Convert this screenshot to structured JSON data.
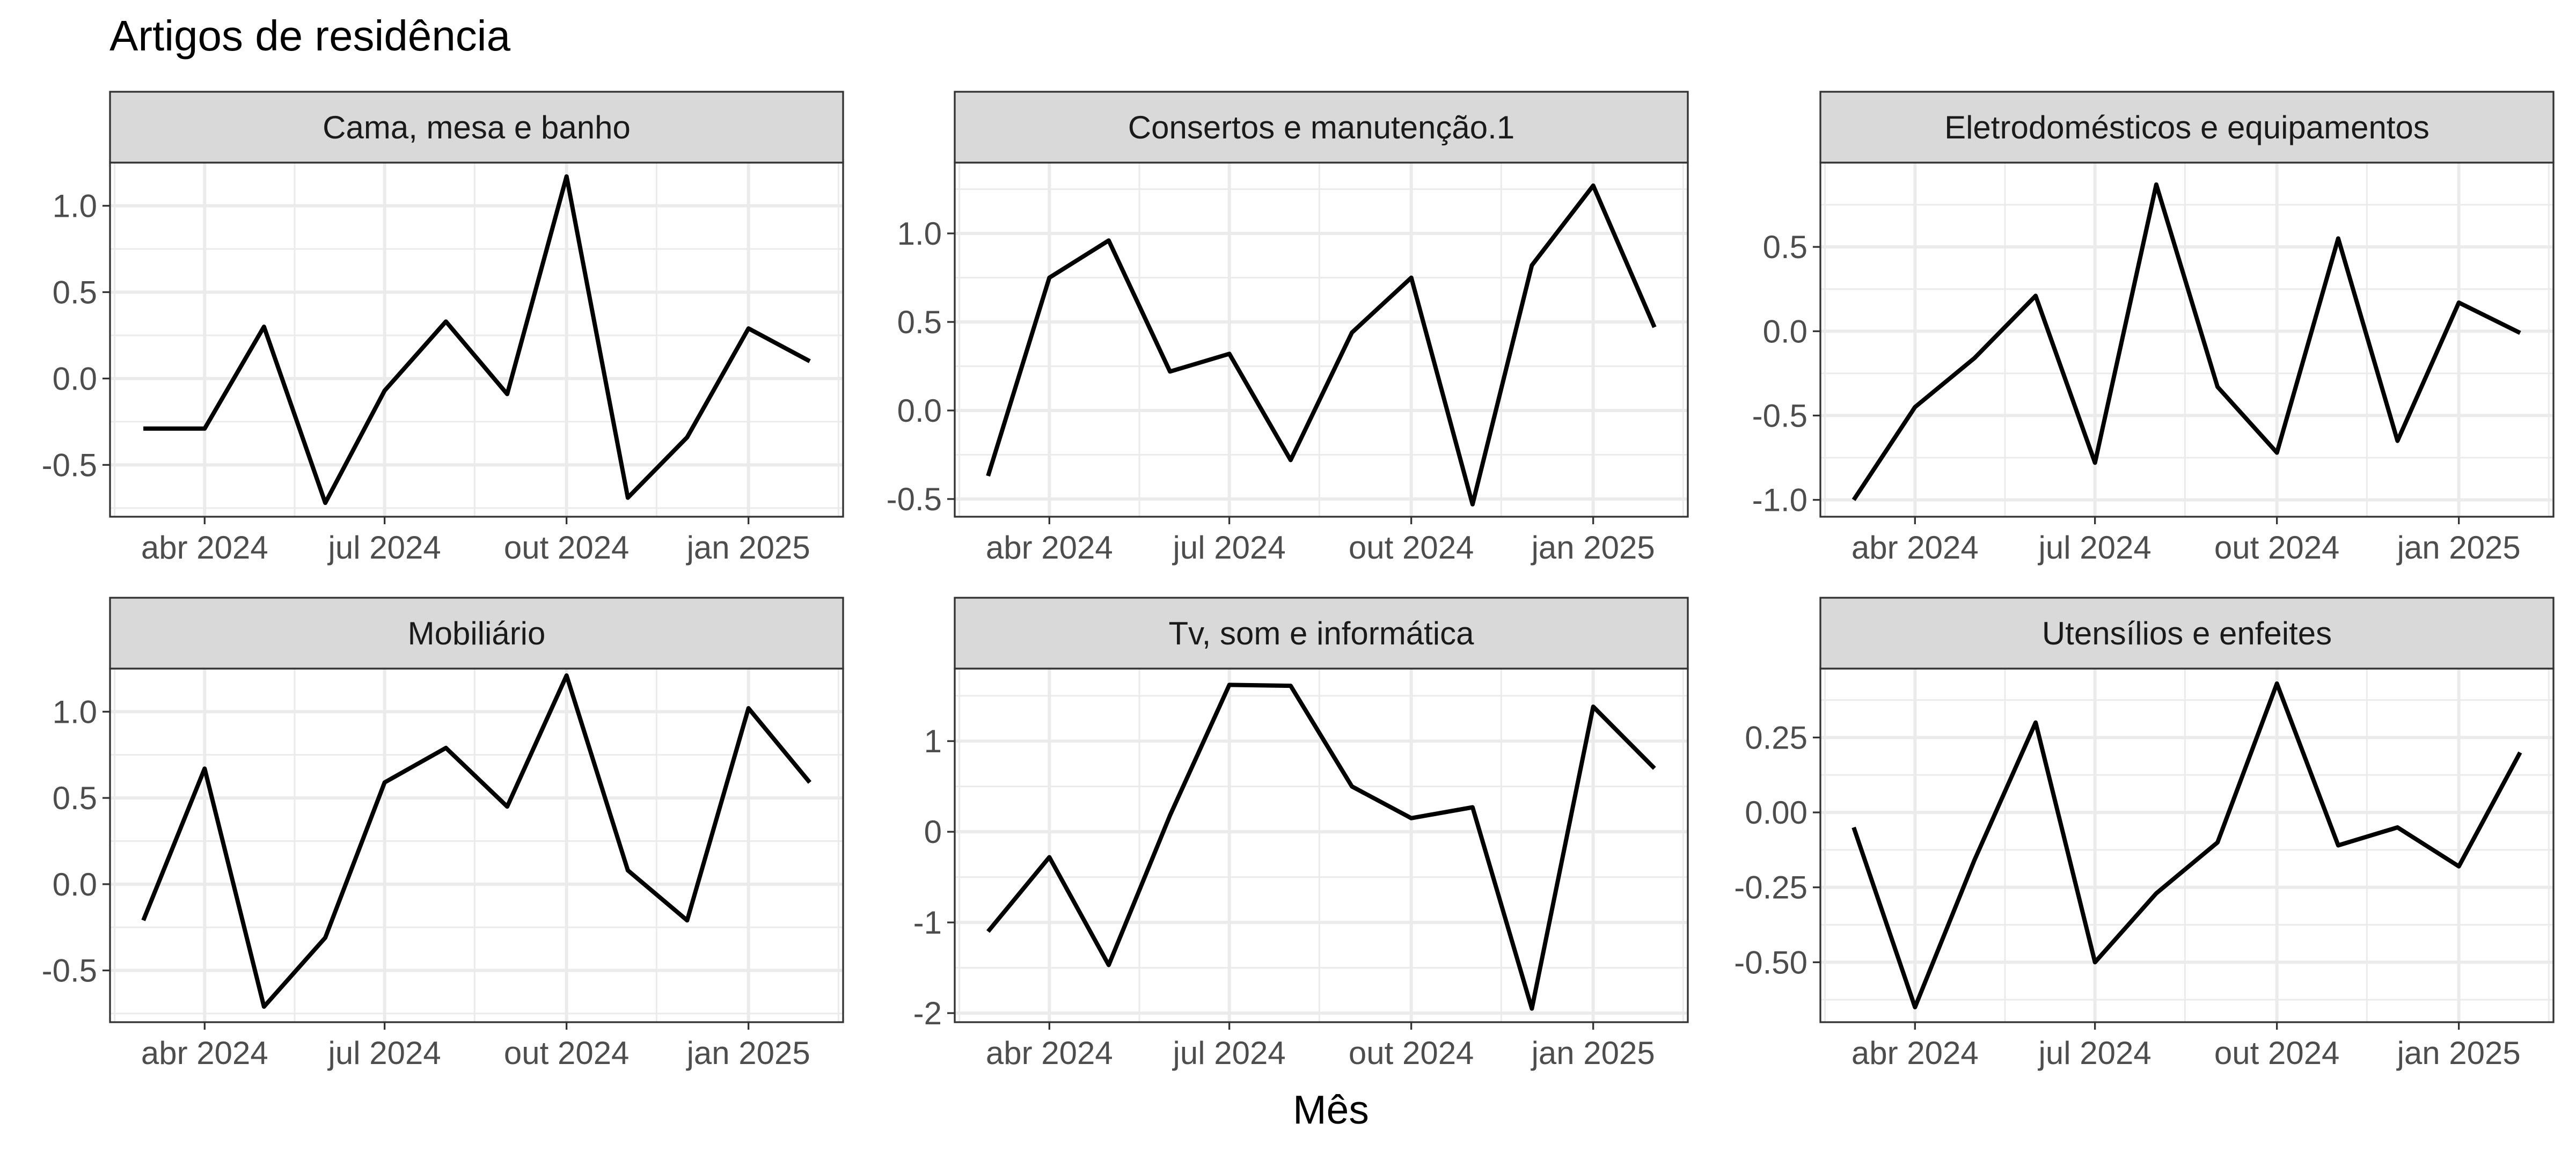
{
  "chart_data": {
    "type": "line",
    "title": "Artigos de residência",
    "xlabel": "Mês",
    "ylabel": "",
    "x_tick_labels": [
      "abr 2024",
      "jul 2024",
      "out 2024",
      "jan 2025"
    ],
    "x_tick_dates": [
      "2024-04-01",
      "2024-07-01",
      "2024-10-01",
      "2025-01-01"
    ],
    "x": [
      "2024-03-01",
      "2024-04-01",
      "2024-05-01",
      "2024-06-01",
      "2024-07-01",
      "2024-08-01",
      "2024-09-01",
      "2024-10-01",
      "2024-11-01",
      "2024-12-01",
      "2025-01-01",
      "2025-02-01"
    ],
    "grid": true,
    "panels": [
      {
        "name": "Cama, mesa e banho",
        "ylim": [
          -0.8,
          1.25
        ],
        "yticks": [
          -0.5,
          0.0,
          0.5,
          1.0
        ],
        "ytick_labels": [
          "-0.5",
          "0.0",
          "0.5",
          "1.0"
        ],
        "values": [
          -0.29,
          -0.29,
          0.3,
          -0.72,
          -0.07,
          0.33,
          -0.09,
          1.17,
          -0.69,
          -0.34,
          0.29,
          0.1
        ]
      },
      {
        "name": "Consertos e manutenção.1",
        "ylim": [
          -0.6,
          1.4
        ],
        "yticks": [
          -0.5,
          0.0,
          0.5,
          1.0
        ],
        "ytick_labels": [
          "-0.5",
          "0.0",
          "0.5",
          "1.0"
        ],
        "values": [
          -0.37,
          0.75,
          0.96,
          0.22,
          0.32,
          -0.28,
          0.44,
          0.75,
          -0.53,
          0.82,
          1.27,
          0.47
        ]
      },
      {
        "name": "Eletrodomésticos e equipamentos",
        "ylim": [
          -1.1,
          1.0
        ],
        "yticks": [
          -1.0,
          -0.5,
          0.0,
          0.5
        ],
        "ytick_labels": [
          "-1.0",
          "-0.5",
          "0.0",
          "0.5"
        ],
        "values": [
          -1.0,
          -0.45,
          -0.16,
          0.21,
          -0.78,
          0.87,
          -0.33,
          -0.72,
          0.55,
          -0.65,
          0.17,
          -0.01
        ]
      },
      {
        "name": "Mobiliário",
        "ylim": [
          -0.8,
          1.25
        ],
        "yticks": [
          -0.5,
          0.0,
          0.5,
          1.0
        ],
        "ytick_labels": [
          "-0.5",
          "0.0",
          "0.5",
          "1.0"
        ],
        "values": [
          -0.21,
          0.67,
          -0.71,
          -0.31,
          0.59,
          0.79,
          0.45,
          1.21,
          0.08,
          -0.21,
          1.02,
          0.59
        ]
      },
      {
        "name": "Tv, som e informática",
        "ylim": [
          -2.1,
          1.8
        ],
        "yticks": [
          -2,
          -1,
          0,
          1
        ],
        "ytick_labels": [
          "-2",
          "-1",
          "0",
          "1"
        ],
        "values": [
          -1.1,
          -0.28,
          -1.47,
          0.18,
          1.62,
          1.61,
          0.5,
          0.15,
          0.27,
          -1.95,
          1.38,
          0.7
        ]
      },
      {
        "name": "Utensílios e enfeites",
        "ylim": [
          -0.7,
          0.48
        ],
        "yticks": [
          -0.5,
          -0.25,
          0.0,
          0.25
        ],
        "ytick_labels": [
          "-0.50",
          "-0.25",
          "0.00",
          "0.25"
        ],
        "values": [
          -0.05,
          -0.65,
          -0.16,
          0.3,
          -0.5,
          -0.27,
          -0.1,
          0.43,
          -0.11,
          -0.05,
          -0.18,
          0.2
        ]
      }
    ]
  }
}
